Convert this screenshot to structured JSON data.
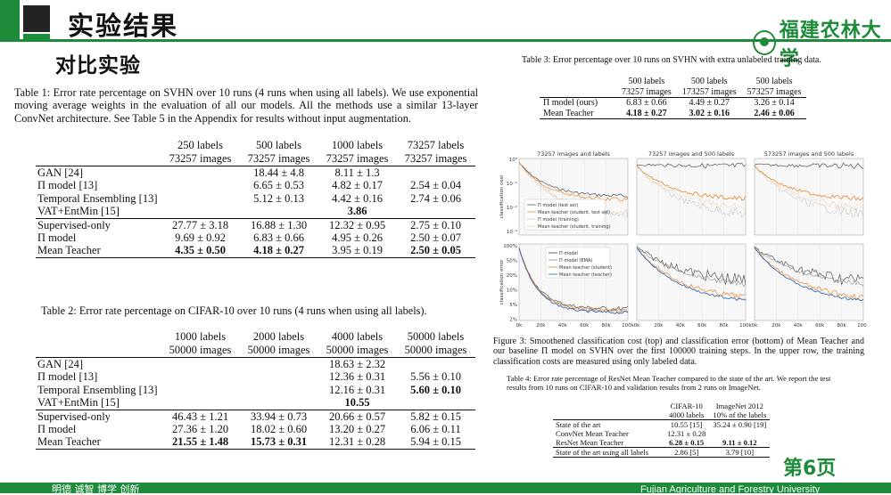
{
  "header": {
    "title": "实验结果",
    "subtitle": "对比实验",
    "logo_text": "福建农林大学",
    "accent_color": "#1e8b3a"
  },
  "table1": {
    "caption": "Table 1: Error rate percentage on SVHN over 10 runs (4 runs when using all labels). We use exponential moving average weights in the evaluation of all our models. All the methods use a similar 13-layer ConvNet architecture. See Table 5 in the Appendix for results without input augmentation.",
    "columns": [
      {
        "line1": "250 labels",
        "line2": "73257 images"
      },
      {
        "line1": "500 labels",
        "line2": "73257 images"
      },
      {
        "line1": "1000 labels",
        "line2": "73257 images"
      },
      {
        "line1": "73257 labels",
        "line2": "73257 images"
      }
    ],
    "rows": [
      {
        "label": "GAN [24]",
        "cells": [
          "",
          "18.44 ± 4.8",
          "8.11 ± 1.3",
          ""
        ],
        "bold": []
      },
      {
        "label": "Π model [13]",
        "cells": [
          "",
          "6.65 ± 0.53",
          "4.82 ± 0.17",
          "2.54 ± 0.04"
        ],
        "bold": []
      },
      {
        "label": "Temporal Ensembling [13]",
        "cells": [
          "",
          "5.12 ± 0.13",
          "4.42 ± 0.16",
          "2.74 ± 0.06"
        ],
        "bold": []
      },
      {
        "label": "VAT+EntMin [15]",
        "cells": [
          "",
          "",
          "3.86",
          ""
        ],
        "bold": [
          2
        ]
      },
      {
        "label": "Supervised-only",
        "cells": [
          "27.77 ± 3.18",
          "16.88 ± 1.30",
          "12.32 ± 0.95",
          "2.75 ± 0.10"
        ],
        "bold": []
      },
      {
        "label": "Π model",
        "cells": [
          "9.69 ± 0.92",
          "6.83 ± 0.66",
          "4.95 ± 0.26",
          "2.50 ± 0.07"
        ],
        "bold": []
      },
      {
        "label": "Mean Teacher",
        "cells": [
          "4.35 ± 0.50",
          "4.18 ± 0.27",
          "3.95 ± 0.19",
          "2.50 ± 0.05"
        ],
        "bold": [
          0,
          1,
          3
        ]
      }
    ]
  },
  "table2": {
    "caption": "Table 2: Error rate percentage on CIFAR-10 over 10 runs (4 runs when using all labels).",
    "columns": [
      {
        "line1": "1000 labels",
        "line2": "50000 images"
      },
      {
        "line1": "2000 labels",
        "line2": "50000 images"
      },
      {
        "line1": "4000 labels",
        "line2": "50000 images"
      },
      {
        "line1": "50000 labels",
        "line2": "50000 images"
      }
    ],
    "rows": [
      {
        "label": "GAN [24]",
        "cells": [
          "",
          "",
          "18.63 ± 2.32",
          ""
        ],
        "bold": []
      },
      {
        "label": "Π model [13]",
        "cells": [
          "",
          "",
          "12.36 ± 0.31",
          "5.56 ± 0.10"
        ],
        "bold": []
      },
      {
        "label": "Temporal Ensembling [13]",
        "cells": [
          "",
          "",
          "12.16 ± 0.31",
          "5.60 ± 0.10"
        ],
        "bold": [
          3
        ]
      },
      {
        "label": "VAT+EntMin [15]",
        "cells": [
          "",
          "",
          "10.55",
          ""
        ],
        "bold": [
          2
        ]
      },
      {
        "label": "Supervised-only",
        "cells": [
          "46.43 ± 1.21",
          "33.94 ± 0.73",
          "20.66 ± 0.57",
          "5.82 ± 0.15"
        ],
        "bold": []
      },
      {
        "label": "Π model",
        "cells": [
          "27.36 ± 1.20",
          "18.02 ± 0.60",
          "13.20 ± 0.27",
          "6.06 ± 0.11"
        ],
        "bold": []
      },
      {
        "label": "Mean Teacher",
        "cells": [
          "21.55 ± 1.48",
          "15.73 ± 0.31",
          "12.31 ± 0.28",
          "5.94 ± 0.15"
        ],
        "bold": [
          0,
          1
        ]
      }
    ]
  },
  "table3": {
    "caption": "Table 3: Error percentage over 10 runs on SVHN with extra unlabeled training data.",
    "columns": [
      {
        "line1": "500 labels",
        "line2": "73257 images"
      },
      {
        "line1": "500 labels",
        "line2": "173257 images"
      },
      {
        "line1": "500 labels",
        "line2": "573257 images"
      }
    ],
    "rows": [
      {
        "label": "Π model (ours)",
        "cells": [
          "6.83 ± 0.66",
          "4.49 ± 0.27",
          "3.26 ± 0.14"
        ],
        "bold": []
      },
      {
        "label": "Mean Teacher",
        "cells": [
          "4.18 ± 0.27",
          "3.02 ± 0.16",
          "2.46 ± 0.06"
        ],
        "bold": [
          0,
          1,
          2
        ]
      }
    ]
  },
  "figure": {
    "panel_titles": [
      "73257 images and labels",
      "73257 images and 500 labels",
      "573257 images and 500 labels"
    ],
    "ylabel_top": "classification cost",
    "ylabel_bottom": "classification error",
    "y_ticks_top": [
      "10⁰",
      "10⁻¹",
      "10⁻²",
      "10⁻³"
    ],
    "y_ticks_bottom": [
      "100%",
      "50%",
      "20%",
      "10%",
      "5%",
      "2%"
    ],
    "x_ticks": [
      "0k",
      "20k",
      "40k",
      "60k",
      "80k",
      "100k"
    ],
    "legend_top": [
      "Π model (test set)",
      "Mean teacher (student, test set)",
      "Π model (training)",
      "Mean teacher (student, training)"
    ],
    "legend_bottom": [
      "Π model",
      "Π model (EMA)",
      "Mean teacher (student)",
      "Mean teacher (teacher)"
    ],
    "colors": {
      "pi": "#555555",
      "pi_ema": "#9a9a9a",
      "student": "#e8862a",
      "teacher": "#3a6fb5"
    },
    "caption": "Figure 3: Smoothened classification cost (top) and classification error (bottom) of Mean Teacher and our baseline Π model on SVHN over the first 100000 training steps. In the upper row, the training classification costs are measured using only labeled data."
  },
  "table4": {
    "caption": "Table 4: Error rate percentage of ResNet Mean Teacher compared to the state of the art. We report the test results from 10 runs on CIFAR-10 and validation results from 2 runs on ImageNet.",
    "columns": [
      {
        "line1": "CIFAR-10",
        "line2": "4000 labels"
      },
      {
        "line1": "ImageNet 2012",
        "line2": "10% of the labels"
      }
    ],
    "rows": [
      {
        "label": "State of the art",
        "cells": [
          "10.55 [15]",
          "35.24 ± 0.90 [19]"
        ],
        "bold": []
      },
      {
        "label": "ConvNet Mean Teacher",
        "cells": [
          "12.31 ± 0.28",
          ""
        ],
        "bold": []
      },
      {
        "label": "ResNet Mean Teacher",
        "cells": [
          "6.28 ± 0.15",
          "9.11 ± 0.12"
        ],
        "bold": [
          0,
          1
        ]
      },
      {
        "label": "State of the art using all labels",
        "cells": [
          "2.86 [5]",
          "3.79 [10]"
        ],
        "bold": []
      }
    ]
  },
  "page_number": "第6页",
  "footer": {
    "left": "明德 诚智 博学 创新",
    "right": "Fujian Agriculture and Forestry University"
  }
}
